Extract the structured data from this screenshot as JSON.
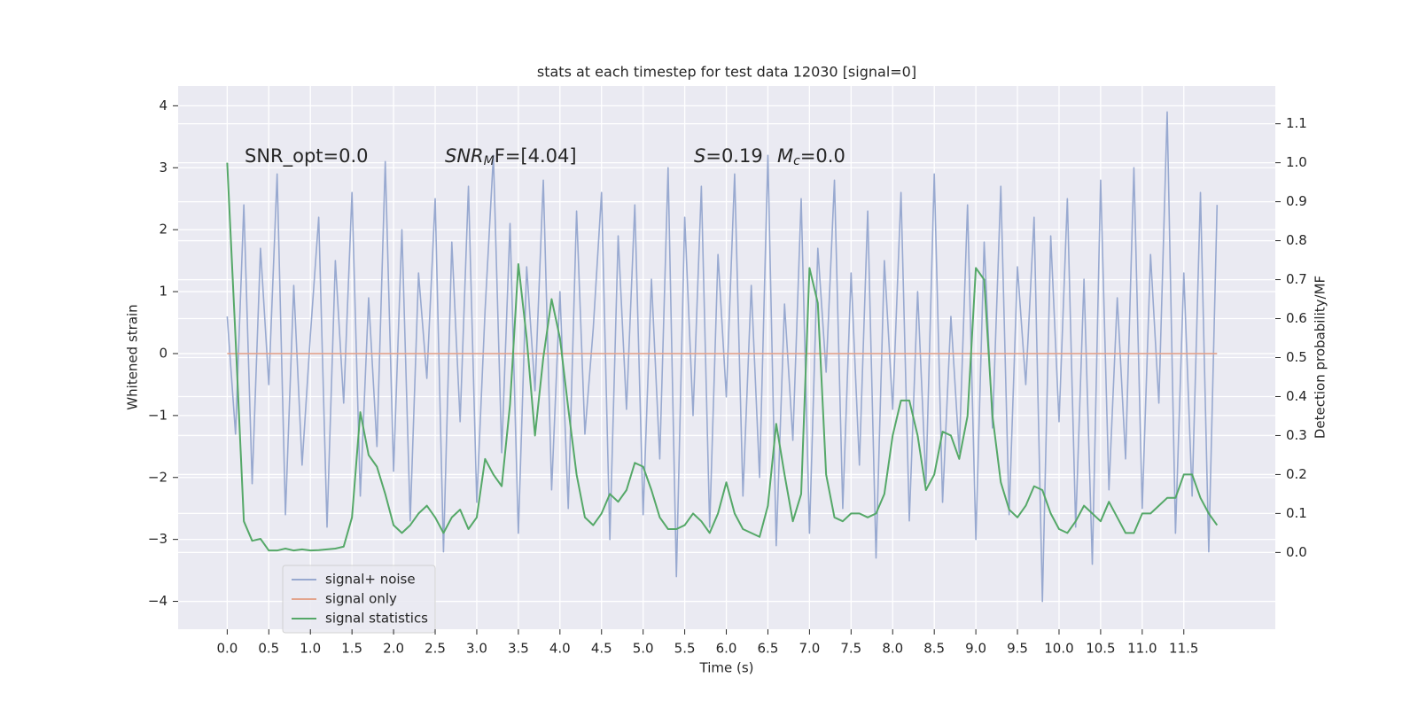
{
  "chart_data": {
    "type": "line",
    "title": "stats at each timestep for test data 12030 [signal=0]",
    "x_label": "Time (s)",
    "y_label": "Whitened strain",
    "y2_label": "Detection probability/MF",
    "annotations": {
      "snr_opt": "SNR_opt=0.0",
      "snr_mf": [
        "SNR",
        "M",
        "F=[4.04]"
      ],
      "s": [
        "S",
        "=0.19"
      ],
      "mc": [
        "M",
        "c",
        "=0.0"
      ]
    },
    "xlim": [
      -0.59,
      12.6
    ],
    "ylim": [
      -4.45,
      4.32
    ],
    "y2lim": [
      -0.197,
      1.197
    ],
    "xticks": [
      {
        "value": 0,
        "label": "0.0"
      },
      0.5,
      {
        "value": 1,
        "label": "1.0"
      },
      1.5,
      {
        "value": 2,
        "label": "2.0"
      },
      2.5,
      {
        "value": 3,
        "label": "3.0"
      },
      3.5,
      {
        "value": 4,
        "label": "4.0"
      },
      4.5,
      {
        "value": 5,
        "label": "5.0"
      },
      5.5,
      {
        "value": 6,
        "label": "6.0"
      },
      6.5,
      {
        "value": 7,
        "label": "7.0"
      },
      7.5,
      {
        "value": 8,
        "label": "8.0"
      },
      8.5,
      {
        "value": 9,
        "label": "9.0"
      },
      9.5,
      {
        "value": 10,
        "label": "10.0"
      },
      10.5,
      {
        "value": 11,
        "label": "11.0"
      },
      11.5
    ],
    "yticks": [
      {
        "value": -4,
        "label": "−4"
      },
      {
        "value": -3,
        "label": "−3"
      },
      {
        "value": -2,
        "label": "−2"
      },
      {
        "value": -1,
        "label": "−1"
      },
      0,
      1,
      2,
      3,
      4
    ],
    "y2ticks": [
      {
        "value": 0,
        "label": "0.0"
      },
      0.1,
      0.2,
      0.3,
      0.4,
      0.5,
      0.6,
      0.7,
      0.8,
      0.9,
      {
        "value": 1,
        "label": "1.0"
      },
      1.1
    ],
    "grid": true,
    "legend": "lower left",
    "x": [
      0.0,
      0.1,
      0.2,
      0.3,
      0.4,
      0.5,
      0.6,
      0.7,
      0.8,
      0.9,
      1.0,
      1.1,
      1.2,
      1.3,
      1.4,
      1.5,
      1.6,
      1.7,
      1.8,
      1.9,
      2.0,
      2.1,
      2.2,
      2.3,
      2.4,
      2.5,
      2.6,
      2.7,
      2.8,
      2.9,
      3.0,
      3.1,
      3.2,
      3.3,
      3.4,
      3.5,
      3.6,
      3.7,
      3.8,
      3.9,
      4.0,
      4.1,
      4.2,
      4.3,
      4.4,
      4.5,
      4.6,
      4.7,
      4.8,
      4.9,
      5.0,
      5.1,
      5.2,
      5.3,
      5.4,
      5.5,
      5.6,
      5.7,
      5.8,
      5.9,
      6.0,
      6.1,
      6.2,
      6.3,
      6.4,
      6.5,
      6.6,
      6.7,
      6.8,
      6.9,
      7.0,
      7.1,
      7.2,
      7.3,
      7.4,
      7.5,
      7.6,
      7.7,
      7.8,
      7.9,
      8.0,
      8.1,
      8.2,
      8.3,
      8.4,
      8.5,
      8.6,
      8.7,
      8.8,
      8.9,
      9.0,
      9.1,
      9.2,
      9.3,
      9.4,
      9.5,
      9.6,
      9.7,
      9.8,
      9.9,
      10.0,
      10.1,
      10.2,
      10.3,
      10.4,
      10.5,
      10.6,
      10.7,
      10.8,
      10.9,
      11.0,
      11.1,
      11.2,
      11.3,
      11.4,
      11.5,
      11.6,
      11.7,
      11.8,
      11.9
    ],
    "series": [
      {
        "name": "signal+ noise",
        "color": "#98a9d0",
        "axis": "y",
        "values": [
          0.6,
          -1.3,
          2.4,
          -2.1,
          1.7,
          -0.5,
          2.9,
          -2.6,
          1.1,
          -1.8,
          0.3,
          2.2,
          -2.8,
          1.5,
          -0.8,
          2.6,
          -2.3,
          0.9,
          -1.5,
          3.1,
          -1.9,
          2.0,
          -2.7,
          1.3,
          -0.4,
          2.5,
          -3.2,
          1.8,
          -1.1,
          2.7,
          -2.4,
          0.7,
          3.2,
          -1.6,
          2.1,
          -2.9,
          1.4,
          -0.6,
          2.8,
          -2.2,
          1.0,
          -2.5,
          2.3,
          -1.3,
          0.4,
          2.6,
          -3.0,
          1.9,
          -0.9,
          2.4,
          -2.6,
          1.2,
          -1.7,
          3.0,
          -3.6,
          2.2,
          -1.0,
          2.7,
          -2.8,
          1.6,
          -0.7,
          2.9,
          -2.3,
          1.1,
          -2.0,
          3.2,
          -3.1,
          0.8,
          -1.4,
          2.5,
          -2.9,
          1.7,
          -0.3,
          2.8,
          -2.5,
          1.3,
          -1.8,
          2.3,
          -3.3,
          1.5,
          -0.9,
          2.6,
          -2.7,
          1.0,
          -2.1,
          2.9,
          -2.4,
          0.6,
          -1.6,
          2.4,
          -3.0,
          1.8,
          -1.2,
          2.7,
          -2.6,
          1.4,
          -0.5,
          2.2,
          -4.0,
          1.9,
          -1.1,
          2.5,
          -2.8,
          1.2,
          -3.4,
          2.8,
          -2.2,
          0.9,
          -1.7,
          3.0,
          -2.5,
          1.6,
          -0.8,
          3.9,
          -2.9,
          1.3,
          -2.3,
          2.6,
          -3.2,
          2.4
        ]
      },
      {
        "name": "signal only",
        "color": "#e3a48d",
        "axis": "y",
        "values": [
          0,
          0,
          0,
          0,
          0,
          0,
          0,
          0,
          0,
          0,
          0,
          0,
          0,
          0,
          0,
          0,
          0,
          0,
          0,
          0,
          0,
          0,
          0,
          0,
          0,
          0,
          0,
          0,
          0,
          0,
          0,
          0,
          0,
          0,
          0,
          0,
          0,
          0,
          0,
          0,
          0,
          0,
          0,
          0,
          0,
          0,
          0,
          0,
          0,
          0,
          0,
          0,
          0,
          0,
          0,
          0,
          0,
          0,
          0,
          0,
          0,
          0,
          0,
          0,
          0,
          0,
          0,
          0,
          0,
          0,
          0,
          0,
          0,
          0,
          0,
          0,
          0,
          0,
          0,
          0,
          0,
          0,
          0,
          0,
          0,
          0,
          0,
          0,
          0,
          0,
          0,
          0,
          0,
          0,
          0,
          0,
          0,
          0,
          0,
          0,
          0,
          0,
          0,
          0,
          0,
          0,
          0,
          0,
          0,
          0,
          0,
          0,
          0,
          0,
          0,
          0,
          0,
          0,
          0,
          0
        ]
      },
      {
        "name": "signal statistics",
        "color": "#55a868",
        "axis": "y2",
        "values": [
          1.0,
          0.55,
          0.08,
          0.03,
          0.035,
          0.005,
          0.005,
          0.01,
          0.005,
          0.008,
          0.005,
          0.006,
          0.008,
          0.01,
          0.015,
          0.09,
          0.36,
          0.25,
          0.22,
          0.15,
          0.07,
          0.05,
          0.07,
          0.1,
          0.12,
          0.09,
          0.05,
          0.09,
          0.11,
          0.06,
          0.09,
          0.24,
          0.2,
          0.17,
          0.38,
          0.74,
          0.55,
          0.3,
          0.5,
          0.65,
          0.55,
          0.37,
          0.2,
          0.09,
          0.07,
          0.1,
          0.15,
          0.13,
          0.16,
          0.23,
          0.22,
          0.16,
          0.09,
          0.06,
          0.06,
          0.07,
          0.1,
          0.08,
          0.05,
          0.1,
          0.18,
          0.1,
          0.06,
          0.05,
          0.04,
          0.12,
          0.33,
          0.2,
          0.08,
          0.15,
          0.73,
          0.64,
          0.2,
          0.09,
          0.08,
          0.1,
          0.1,
          0.09,
          0.1,
          0.15,
          0.3,
          0.39,
          0.39,
          0.3,
          0.16,
          0.2,
          0.31,
          0.3,
          0.24,
          0.35,
          0.73,
          0.7,
          0.35,
          0.18,
          0.11,
          0.09,
          0.12,
          0.17,
          0.16,
          0.1,
          0.06,
          0.05,
          0.08,
          0.12,
          0.1,
          0.08,
          0.13,
          0.09,
          0.05,
          0.05,
          0.1,
          0.1,
          0.12,
          0.14,
          0.14,
          0.2,
          0.2,
          0.14,
          0.1,
          0.07
        ]
      }
    ]
  }
}
